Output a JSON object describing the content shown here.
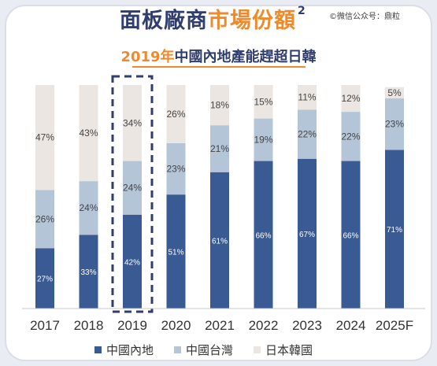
{
  "title": {
    "main": "面板廠商",
    "accent": "市場份額",
    "sup": "2"
  },
  "watermark": "©微信公众号：鼎粒",
  "subtitle": {
    "accent": "2019年",
    "main": "中國內地產能趕超日韓"
  },
  "highlight_category": "2019",
  "colors": {
    "mainland": "#3a5a94",
    "taiwan": "#b4c5d8",
    "japan_korea": "#ebe6e2",
    "accent": "#ef8a2c",
    "title": "#2f3e6e"
  },
  "chart_data": {
    "type": "bar",
    "stacked": true,
    "categories": [
      "2017",
      "2018",
      "2019",
      "2020",
      "2021",
      "2022",
      "2023",
      "2024",
      "2025F"
    ],
    "series": [
      {
        "name": "中國內地",
        "color": "#3a5a94",
        "values": [
          27,
          33,
          42,
          51,
          61,
          66,
          67,
          66,
          71
        ],
        "labels": [
          "27%",
          "33%",
          "42%",
          "51%",
          "61%",
          "66%",
          "67%",
          "66%",
          "71%"
        ]
      },
      {
        "name": "中國台灣",
        "color": "#b4c5d8",
        "values": [
          26,
          24,
          24,
          23,
          21,
          19,
          22,
          22,
          23
        ],
        "labels": [
          "26%",
          "24%",
          "24%",
          "23%",
          "21%",
          "19%",
          "22%",
          "22%",
          "23%"
        ]
      },
      {
        "name": "日本韓國",
        "color": "#ebe6e2",
        "values": [
          47,
          43,
          34,
          26,
          18,
          15,
          11,
          12,
          5
        ],
        "labels": [
          "47%",
          "43%",
          "34%",
          "26%",
          "18%",
          "15%",
          "11%",
          "12%",
          "5%"
        ]
      }
    ],
    "ylim": [
      0,
      100
    ],
    "legend_position": "bottom"
  }
}
